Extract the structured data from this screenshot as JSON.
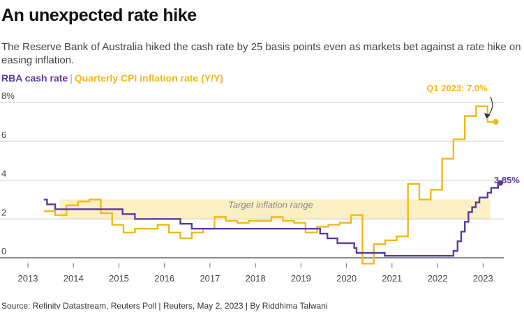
{
  "title": "An unexpected rate hike",
  "subtitle": "The Reserve Bank of Australia hiked the cash rate by 25 basis points even as markets bet against a rate hike on easing inflation.",
  "legend": {
    "rba": "RBA cash rate",
    "separator": "|",
    "cpi": "Quarterly CPI inflation rate (Y/Y)"
  },
  "source": "Source: Refinitv Datastream, Reuters Poll | Reuters, May 2, 2023 | By Riddhima Talwani",
  "colors": {
    "rba": "#5b3a9c",
    "cpi": "#f0b917",
    "band": "#fbefc4",
    "grid": "#cccccc",
    "axis": "#444444"
  },
  "chart_data": {
    "type": "line",
    "ylim": [
      0,
      8
    ],
    "xlim": [
      2013.0,
      2023.9
    ],
    "yticks": [
      {
        "value": 0,
        "label": "0"
      },
      {
        "value": 2,
        "label": "2"
      },
      {
        "value": 4,
        "label": "4"
      },
      {
        "value": 6,
        "label": "6"
      },
      {
        "value": 8,
        "label": "8%"
      }
    ],
    "xticks": [
      {
        "value": 2013,
        "label": "2013"
      },
      {
        "value": 2014,
        "label": "2014"
      },
      {
        "value": 2015,
        "label": "2015"
      },
      {
        "value": 2016,
        "label": "2016"
      },
      {
        "value": 2017,
        "label": "2017"
      },
      {
        "value": 2018,
        "label": "2018"
      },
      {
        "value": 2019,
        "label": "2019"
      },
      {
        "value": 2020,
        "label": "2020"
      },
      {
        "value": 2021,
        "label": "2021"
      },
      {
        "value": 2022,
        "label": "2022"
      },
      {
        "value": 2023,
        "label": "2023"
      }
    ],
    "target_band": {
      "label": "Target inflation range",
      "from": 2,
      "to": 3
    },
    "series": [
      {
        "name": "RBA cash rate",
        "key": "rba",
        "step": true,
        "points": [
          [
            2013.35,
            3.0
          ],
          [
            2013.42,
            2.75
          ],
          [
            2013.6,
            2.5
          ],
          [
            2015.08,
            2.25
          ],
          [
            2015.35,
            2.0
          ],
          [
            2016.35,
            1.75
          ],
          [
            2016.6,
            1.5
          ],
          [
            2019.42,
            1.25
          ],
          [
            2019.58,
            1.0
          ],
          [
            2019.8,
            0.75
          ],
          [
            2020.17,
            0.5
          ],
          [
            2020.22,
            0.25
          ],
          [
            2020.84,
            0.1
          ],
          [
            2022.35,
            0.35
          ],
          [
            2022.44,
            0.85
          ],
          [
            2022.52,
            1.35
          ],
          [
            2022.6,
            1.85
          ],
          [
            2022.68,
            2.35
          ],
          [
            2022.76,
            2.6
          ],
          [
            2022.84,
            2.85
          ],
          [
            2022.92,
            3.1
          ],
          [
            2023.1,
            3.35
          ],
          [
            2023.18,
            3.6
          ],
          [
            2023.33,
            3.85
          ]
        ],
        "end_label": "3.85%"
      },
      {
        "name": "Quarterly CPI inflation rate (Y/Y)",
        "key": "cpi",
        "step": true,
        "points": [
          [
            2013.35,
            2.4
          ],
          [
            2013.6,
            2.2
          ],
          [
            2013.85,
            2.7
          ],
          [
            2014.1,
            2.9
          ],
          [
            2014.35,
            3.0
          ],
          [
            2014.6,
            2.3
          ],
          [
            2014.85,
            1.7
          ],
          [
            2015.1,
            1.3
          ],
          [
            2015.35,
            1.5
          ],
          [
            2015.6,
            1.5
          ],
          [
            2015.85,
            1.7
          ],
          [
            2016.1,
            1.3
          ],
          [
            2016.35,
            1.0
          ],
          [
            2016.6,
            1.3
          ],
          [
            2016.85,
            1.5
          ],
          [
            2017.1,
            2.1
          ],
          [
            2017.35,
            1.9
          ],
          [
            2017.6,
            1.8
          ],
          [
            2017.85,
            1.9
          ],
          [
            2018.1,
            1.9
          ],
          [
            2018.35,
            2.1
          ],
          [
            2018.6,
            1.9
          ],
          [
            2018.85,
            1.8
          ],
          [
            2019.1,
            1.3
          ],
          [
            2019.35,
            1.6
          ],
          [
            2019.6,
            1.7
          ],
          [
            2019.85,
            1.8
          ],
          [
            2020.1,
            2.2
          ],
          [
            2020.35,
            -0.3
          ],
          [
            2020.6,
            0.7
          ],
          [
            2020.85,
            0.9
          ],
          [
            2021.1,
            1.1
          ],
          [
            2021.35,
            3.8
          ],
          [
            2021.6,
            3.0
          ],
          [
            2021.85,
            3.5
          ],
          [
            2022.1,
            5.1
          ],
          [
            2022.35,
            6.1
          ],
          [
            2022.6,
            7.3
          ],
          [
            2022.85,
            7.8
          ],
          [
            2023.1,
            7.0
          ]
        ],
        "end_label": "Q1 2023: 7.0%"
      }
    ]
  }
}
